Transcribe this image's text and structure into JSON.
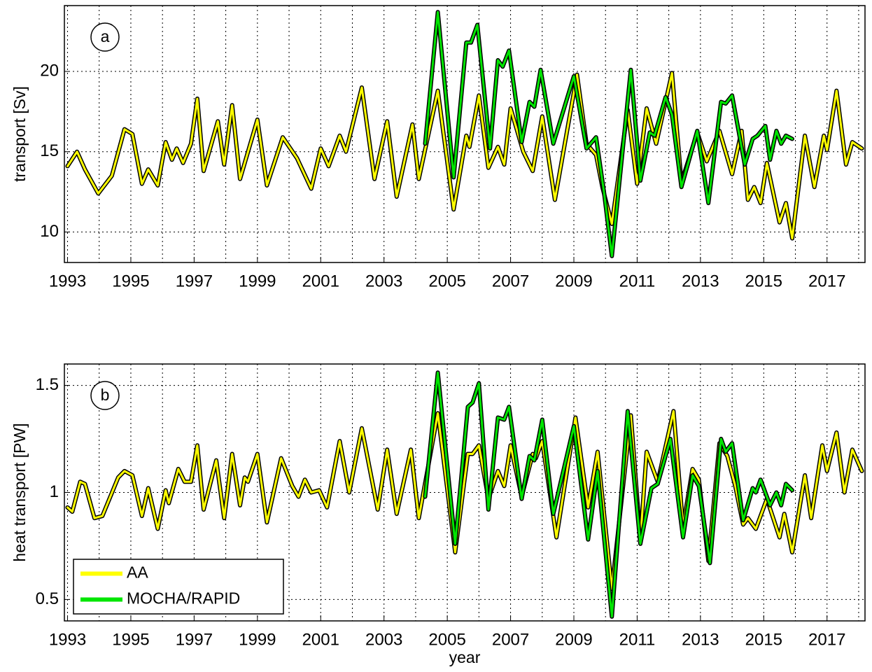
{
  "chart_data": [
    {
      "type": "line",
      "annotation": "a",
      "ylabel": "transport [Sv]",
      "xlim": [
        1992.9,
        2018.2
      ],
      "ylim": [
        8.1,
        24.1
      ],
      "xticks": [
        1993,
        1995,
        1997,
        1999,
        2001,
        2003,
        2005,
        2007,
        2009,
        2011,
        2013,
        2015,
        2017
      ],
      "xminor_ticks": [
        1994,
        1996,
        1998,
        2000,
        2002,
        2004,
        2006,
        2008,
        2010,
        2012,
        2014,
        2016,
        2018
      ],
      "yticks": [
        10,
        15,
        20
      ],
      "grid": true,
      "series": [
        {
          "color": "#ffff00",
          "outline": "#000000",
          "x": [
            1993.0,
            1993.3,
            1993.55,
            1993.97,
            1994.4,
            1994.8,
            1995.05,
            1995.35,
            1995.55,
            1995.85,
            1996.1,
            1996.3,
            1996.45,
            1996.65,
            1996.9,
            1997.1,
            1997.3,
            1997.75,
            1997.95,
            1998.2,
            1998.45,
            1999.0,
            1999.3,
            1999.8,
            2000.25,
            2000.7,
            2001.0,
            2001.25,
            2001.6,
            2001.8,
            2002.3,
            2002.7,
            2003.1,
            2003.4,
            2003.9,
            2004.1,
            2004.7,
            2005.2,
            2005.6,
            2005.7,
            2006.0,
            2006.3,
            2006.6,
            2006.8,
            2007.0,
            2007.4,
            2007.7,
            2008.0,
            2008.4,
            2009.1,
            2009.4,
            2009.7,
            2009.9,
            2010.2,
            2010.7,
            2011.0,
            2011.3,
            2011.6,
            2012.1,
            2012.4,
            2012.9,
            2013.2,
            2013.6,
            2014.0,
            2014.3,
            2014.5,
            2014.7,
            2014.9,
            2015.1,
            2015.5,
            2015.7,
            2015.9,
            2016.3,
            2016.6,
            2016.9,
            2017.0,
            2017.3,
            2017.6,
            2017.8,
            2018.1
          ],
          "values": [
            14.1,
            15.0,
            13.9,
            12.4,
            13.5,
            16.4,
            16.1,
            13.0,
            13.9,
            12.9,
            15.6,
            14.5,
            15.2,
            14.3,
            15.5,
            18.3,
            13.8,
            16.9,
            14.2,
            17.9,
            13.3,
            17.0,
            12.9,
            15.9,
            14.6,
            12.7,
            15.2,
            14.1,
            16.0,
            15.0,
            19.0,
            13.3,
            16.9,
            12.2,
            16.7,
            13.3,
            18.8,
            11.4,
            16.0,
            15.3,
            18.5,
            14.0,
            15.3,
            14.2,
            17.7,
            15.0,
            13.8,
            17.2,
            12.0,
            19.8,
            15.5,
            14.8,
            12.8,
            10.5,
            17.6,
            13.0,
            17.7,
            15.5,
            19.9,
            13.1,
            16.2,
            14.4,
            16.3,
            13.6,
            16.3,
            12.0,
            12.8,
            11.8,
            14.3,
            10.6,
            11.8,
            9.6,
            16.0,
            12.8,
            16.0,
            15.1,
            18.8,
            14.2,
            15.6,
            15.2
          ]
        },
        {
          "color": "#00e600",
          "outline": "#000000",
          "x": [
            2004.3,
            2004.7,
            2005.2,
            2005.6,
            2005.75,
            2005.95,
            2006.35,
            2006.6,
            2006.75,
            2006.95,
            2007.35,
            2007.6,
            2007.75,
            2007.95,
            2008.35,
            2008.55,
            2009.0,
            2009.4,
            2009.7,
            2009.95,
            2010.2,
            2010.8,
            2011.1,
            2011.4,
            2011.55,
            2011.9,
            2012.1,
            2012.4,
            2012.9,
            2013.25,
            2013.65,
            2013.8,
            2014.0,
            2014.4,
            2014.65,
            2014.8,
            2015.05,
            2015.2,
            2015.4,
            2015.55,
            2015.7,
            2015.9
          ],
          "values": [
            15.5,
            23.7,
            13.4,
            21.8,
            21.8,
            22.9,
            15.2,
            20.7,
            20.3,
            21.3,
            15.6,
            18.1,
            17.8,
            20.1,
            15.5,
            16.8,
            19.7,
            15.2,
            15.9,
            12.5,
            8.5,
            20.1,
            13.2,
            16.2,
            16.0,
            18.4,
            17.3,
            12.8,
            16.3,
            11.8,
            18.1,
            18.0,
            18.5,
            14.2,
            15.8,
            16.0,
            16.6,
            14.5,
            16.3,
            15.5,
            16.0,
            15.8
          ]
        }
      ]
    },
    {
      "type": "line",
      "annotation": "b",
      "ylabel": "heat transport [PW]",
      "xlabel": "year",
      "xlim": [
        1992.9,
        2018.2
      ],
      "ylim": [
        0.4,
        1.6
      ],
      "xticks": [
        1993,
        1995,
        1997,
        1999,
        2001,
        2003,
        2005,
        2007,
        2009,
        2011,
        2013,
        2015,
        2017
      ],
      "xminor_ticks": [
        1994,
        1996,
        1998,
        2000,
        2002,
        2004,
        2006,
        2008,
        2010,
        2012,
        2014,
        2016,
        2018
      ],
      "yticks": [
        0.5,
        1,
        1.5
      ],
      "grid": true,
      "legend": "lower left",
      "series": [
        {
          "name": "AA",
          "color": "#ffff00",
          "outline": "#000000",
          "x": [
            1993.0,
            1993.15,
            1993.4,
            1993.55,
            1993.85,
            1994.1,
            1994.6,
            1994.8,
            1995.05,
            1995.35,
            1995.55,
            1995.85,
            1996.1,
            1996.2,
            1996.5,
            1996.7,
            1996.9,
            1997.1,
            1997.3,
            1997.7,
            1997.95,
            1998.2,
            1998.45,
            1998.6,
            1998.7,
            1999.0,
            1999.3,
            1999.75,
            2000.1,
            2000.3,
            2000.5,
            2000.7,
            2000.95,
            2001.2,
            2001.6,
            2001.9,
            2002.3,
            2002.8,
            2003.1,
            2003.4,
            2003.85,
            2004.1,
            2004.7,
            2005.25,
            2005.65,
            2005.8,
            2006.0,
            2006.3,
            2006.6,
            2006.8,
            2007.0,
            2007.35,
            2007.7,
            2007.8,
            2008.0,
            2008.45,
            2009.05,
            2009.45,
            2009.75,
            2010.2,
            2010.8,
            2011.1,
            2011.3,
            2011.65,
            2012.15,
            2012.45,
            2012.75,
            2012.95,
            2013.25,
            2013.6,
            2013.85,
            2014.1,
            2014.35,
            2014.5,
            2014.75,
            2015.1,
            2015.5,
            2015.65,
            2015.9,
            2016.3,
            2016.5,
            2016.85,
            2017.0,
            2017.3,
            2017.55,
            2017.8,
            2018.1
          ],
          "values": [
            0.93,
            0.91,
            1.05,
            1.04,
            0.88,
            0.89,
            1.07,
            1.1,
            1.08,
            0.89,
            1.02,
            0.83,
            1.01,
            0.95,
            1.11,
            1.05,
            1.05,
            1.22,
            0.92,
            1.15,
            0.88,
            1.18,
            0.94,
            1.07,
            1.05,
            1.18,
            0.86,
            1.16,
            1.03,
            0.98,
            1.06,
            1.0,
            1.01,
            0.93,
            1.24,
            1.0,
            1.3,
            0.92,
            1.2,
            0.9,
            1.2,
            0.88,
            1.37,
            0.72,
            1.18,
            1.18,
            1.22,
            0.97,
            1.1,
            1.03,
            1.22,
            0.98,
            1.18,
            1.16,
            1.24,
            0.79,
            1.35,
            0.93,
            1.19,
            0.55,
            1.36,
            0.78,
            1.19,
            1.05,
            1.38,
            0.84,
            1.11,
            1.06,
            0.68,
            1.23,
            1.17,
            1.03,
            0.85,
            0.88,
            0.83,
            0.97,
            0.79,
            0.9,
            0.72,
            1.08,
            0.88,
            1.22,
            1.1,
            1.28,
            1.0,
            1.2,
            1.1
          ]
        },
        {
          "name": "MOCHA/RAPID",
          "color": "#00e600",
          "outline": "#000000",
          "x": [
            2004.3,
            2004.7,
            2005.25,
            2005.65,
            2005.8,
            2006.0,
            2006.3,
            2006.6,
            2006.8,
            2006.95,
            2007.35,
            2007.6,
            2007.75,
            2008.0,
            2008.35,
            2009.0,
            2009.45,
            2009.75,
            2010.2,
            2010.7,
            2011.1,
            2011.45,
            2011.65,
            2012.05,
            2012.45,
            2012.75,
            2012.95,
            2013.3,
            2013.65,
            2013.8,
            2014.0,
            2014.35,
            2014.65,
            2014.75,
            2014.9,
            2015.2,
            2015.4,
            2015.55,
            2015.7,
            2015.9
          ],
          "values": [
            0.98,
            1.56,
            0.76,
            1.4,
            1.42,
            1.51,
            0.92,
            1.35,
            1.34,
            1.4,
            0.97,
            1.17,
            1.15,
            1.34,
            0.9,
            1.31,
            0.78,
            1.1,
            0.42,
            1.38,
            0.76,
            1.02,
            1.04,
            1.25,
            0.79,
            1.08,
            1.03,
            0.67,
            1.25,
            1.19,
            1.23,
            0.87,
            1.02,
            1.0,
            1.06,
            0.94,
            1.0,
            0.94,
            1.04,
            1.01
          ]
        }
      ]
    }
  ]
}
